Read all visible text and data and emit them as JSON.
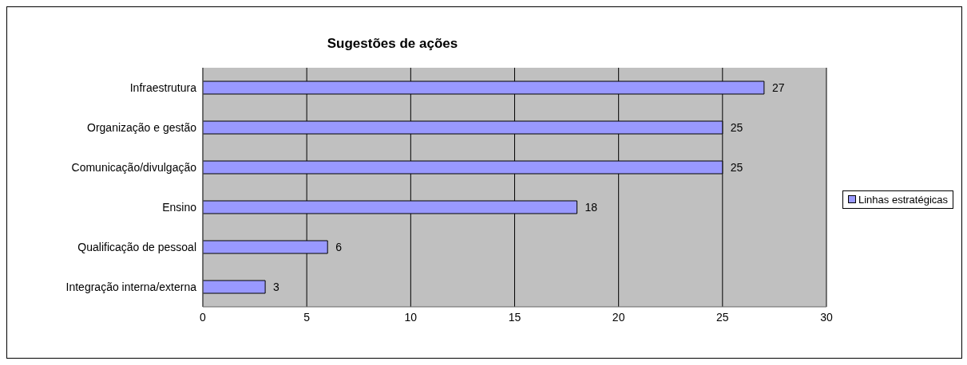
{
  "chart_data": {
    "type": "bar",
    "orientation": "horizontal",
    "title": "Sugestões de ações",
    "categories": [
      "Infraestrutura",
      "Organização e gestão",
      "Comunicação/divulgação",
      "Ensino",
      "Qualificação de pessoal",
      "Integração interna/externa"
    ],
    "series": [
      {
        "name": "Linhas estratégicas",
        "color": "#9999ff",
        "values": [
          27,
          25,
          25,
          18,
          6,
          3
        ]
      }
    ],
    "xlim": [
      0,
      30
    ],
    "xticks": [
      0,
      5,
      10,
      15,
      20,
      25,
      30
    ],
    "grid": "x",
    "legend": "right",
    "data_labels": true
  }
}
